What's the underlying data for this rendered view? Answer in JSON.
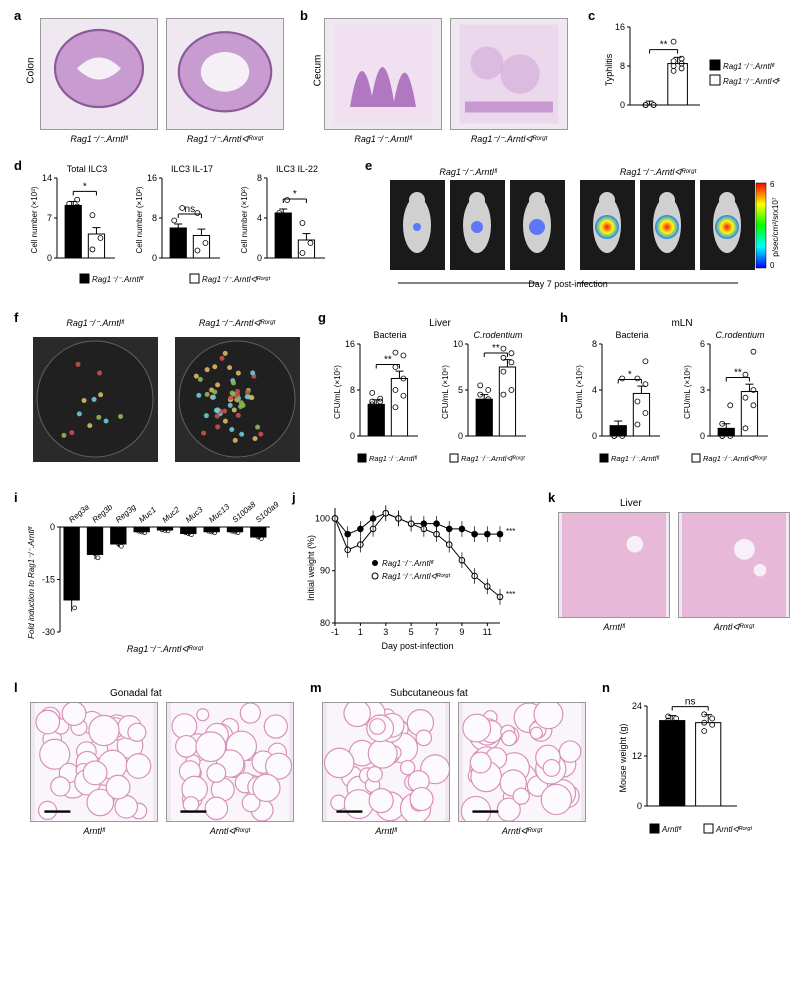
{
  "colors": {
    "histology_bg": "#e8d0e8",
    "histology_tissue": "#a868b0",
    "black_bar": "#000000",
    "white_bar": "#ffffff",
    "petri_bg": "#2a2a2a",
    "colony": "#8db850",
    "heatmap_colors": [
      "#0000ff",
      "#00ffff",
      "#00ff00",
      "#ffff00",
      "#ff0000"
    ]
  },
  "genotypes": {
    "rag_fl": "Rag1⁻/⁻.Arntlᶠˡ",
    "rag_ko": "Rag1⁻/⁻.Arntlᐊᴿᵒʳᵍᵗ",
    "arntl_fl": "Arntlᶠˡ",
    "arntl_ko": "Arntlᐊᴿᵒʳᵍᵗ"
  },
  "panel_a": {
    "label": "a",
    "tissue": "Colon"
  },
  "panel_b": {
    "label": "b",
    "tissue": "Cecum"
  },
  "panel_c": {
    "label": "c",
    "ylabel": "Typhlitis",
    "ylim": [
      0,
      16
    ],
    "yticks": [
      0,
      8,
      16
    ],
    "sig": "**",
    "data": {
      "fl": 0,
      "ko": 8.5
    },
    "points_fl": [
      0,
      0,
      0,
      0,
      0
    ],
    "points_ko": [
      7,
      7.5,
      8,
      8.5,
      9,
      9.5,
      13
    ]
  },
  "panel_d": {
    "label": "d",
    "charts": [
      {
        "title": "Total ILC3",
        "ylabel": "Cell number (×10³)",
        "ylim": [
          0,
          14
        ],
        "yticks": [
          0,
          7,
          14
        ],
        "sig": "*",
        "fl": 9.2,
        "ko": 4.2,
        "pts_fl": [
          8,
          9,
          9.5,
          10.2
        ],
        "pts_ko": [
          1.5,
          3.5,
          7.5
        ]
      },
      {
        "title": "ILC3 IL-17",
        "ylabel": "Cell number (×10²)",
        "ylim": [
          0,
          16
        ],
        "yticks": [
          0,
          8,
          16
        ],
        "sig": "ns",
        "fl": 6,
        "ko": 4.5,
        "pts_fl": [
          1.5,
          5,
          7.5,
          10
        ],
        "pts_ko": [
          1.5,
          3,
          9
        ]
      },
      {
        "title": "ILC3 IL-22",
        "ylabel": "Cell number (×10²)",
        "ylim": [
          0,
          8
        ],
        "yticks": [
          0,
          4,
          8
        ],
        "sig": "*",
        "fl": 4.5,
        "ko": 1.8,
        "pts_fl": [
          3.8,
          4.2,
          4.5,
          5.8
        ],
        "pts_ko": [
          0.5,
          1.5,
          3.5
        ]
      }
    ]
  },
  "panel_e": {
    "label": "e",
    "caption": "Day 7 post-infection",
    "scale_label": "p/sec/cm²/srx10⁷",
    "scale_min": 0,
    "scale_max": 6
  },
  "panel_f": {
    "label": "f"
  },
  "panel_g": {
    "label": "g",
    "header": "Liver",
    "charts": [
      {
        "title": "Bacteria",
        "ylabel": "CFU/mL (×10⁵)",
        "ylim": [
          0,
          16
        ],
        "yticks": [
          0,
          8,
          16
        ],
        "sig": "**",
        "fl": 5.5,
        "ko": 10,
        "pts_fl": [
          4,
          5,
          5.5,
          6,
          6,
          6.5,
          7.5
        ],
        "pts_ko": [
          5,
          7,
          8,
          10,
          12,
          14,
          14.5
        ]
      },
      {
        "title": "C.rodentium",
        "ylabel": "CFU/mL (×10⁶)",
        "ylim": [
          0,
          10
        ],
        "yticks": [
          0,
          5,
          10
        ],
        "sig": "**",
        "fl": 4,
        "ko": 7.5,
        "pts_fl": [
          2.5,
          3,
          3.5,
          4,
          4.5,
          5,
          5.5
        ],
        "pts_ko": [
          4.5,
          5,
          7,
          8,
          8.5,
          9,
          9.5
        ]
      }
    ]
  },
  "panel_h": {
    "label": "h",
    "header": "mLN",
    "charts": [
      {
        "title": "Bacteria",
        "ylabel": "CFU/mL (×10⁵)",
        "ylim": [
          0,
          8
        ],
        "yticks": [
          0,
          4,
          8
        ],
        "sig": "*",
        "fl": 0.9,
        "ko": 3.7,
        "pts_fl": [
          0,
          0,
          0,
          0.2,
          0.5,
          5
        ],
        "pts_ko": [
          1,
          2,
          3,
          4.5,
          5,
          6.5
        ]
      },
      {
        "title": "C.rodentium",
        "ylabel": "CFU/mL (×10⁶)",
        "ylim": [
          0,
          6
        ],
        "yticks": [
          0,
          3,
          6
        ],
        "sig": "**",
        "fl": 0.5,
        "ko": 2.9,
        "pts_fl": [
          0,
          0,
          0,
          0.2,
          0.8,
          2
        ],
        "pts_ko": [
          0.5,
          2,
          2.5,
          3,
          4,
          5.5
        ]
      }
    ]
  },
  "panel_i": {
    "label": "i",
    "ylabel": "Fold induction to Rag1⁻/⁻.Arntlᶠˡ",
    "genes": [
      "Reg3a",
      "Reg3b",
      "Reg3g",
      "Muc1",
      "Muc2",
      "Muc3",
      "Muc13",
      "S100a8",
      "S100a9"
    ],
    "values": [
      -21,
      -8,
      -5,
      -1.5,
      -1,
      -2,
      -1.5,
      -1.5,
      -3
    ],
    "ylim": [
      -30,
      0
    ],
    "yticks": [
      -30,
      -15,
      0
    ]
  },
  "panel_j": {
    "label": "j",
    "ylabel": "Initial weight (%)",
    "xlabel": "Day post-infection",
    "xlim": [
      -1,
      12
    ],
    "ylim": [
      80,
      102
    ],
    "xticks": [
      -1,
      1,
      3,
      5,
      7,
      9,
      11
    ],
    "yticks": [
      80,
      90,
      100
    ],
    "sigs": [
      "***",
      "***"
    ],
    "series": [
      {
        "label": "Rag1⁻/⁻.Arntlᶠˡ",
        "marker": "filled",
        "y": [
          100,
          97,
          98,
          100,
          101,
          100,
          99,
          99,
          99,
          98,
          98,
          97,
          97,
          97
        ]
      },
      {
        "label": "Rag1⁻/⁻.Arntlᐊᴿᵒʳᵍᵗ",
        "marker": "open",
        "y": [
          100,
          94,
          95,
          98,
          101,
          100,
          99,
          98,
          97,
          95,
          92,
          89,
          87,
          85
        ]
      }
    ],
    "x": [
      -1,
      0,
      1,
      2,
      3,
      4,
      5,
      6,
      7,
      8,
      9,
      10,
      11,
      12
    ]
  },
  "panel_k": {
    "label": "k",
    "tissue": "Liver"
  },
  "panel_l": {
    "label": "l",
    "tissue": "Gonadal fat"
  },
  "panel_m": {
    "label": "m",
    "tissue": "Subcutaneous fat"
  },
  "panel_n": {
    "label": "n",
    "ylabel": "Mouse weight (g)",
    "ylim": [
      0,
      24
    ],
    "yticks": [
      0,
      12,
      24
    ],
    "sig": "ns",
    "fl": 20.5,
    "ko": 20,
    "pts_fl": [
      19,
      20,
      20.5,
      21,
      21.5
    ],
    "pts_ko": [
      18,
      19.5,
      20,
      21,
      22
    ]
  }
}
